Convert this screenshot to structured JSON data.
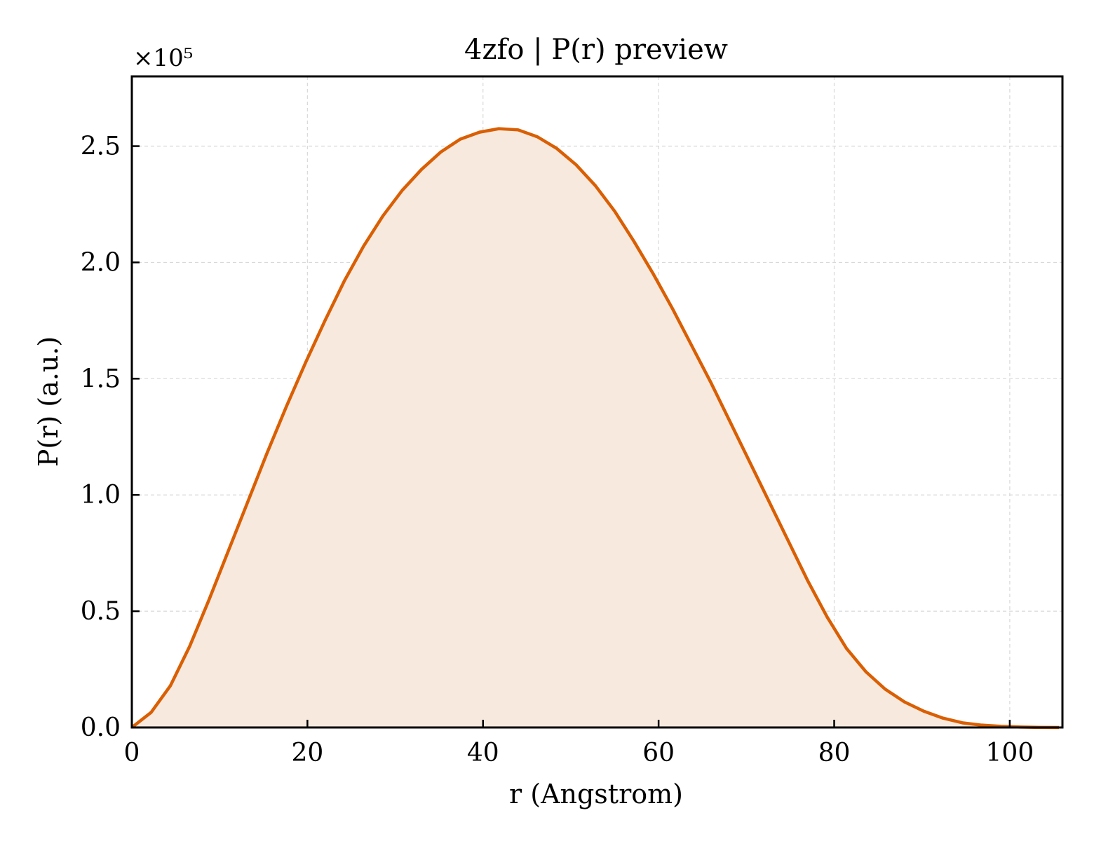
{
  "chart_data": {
    "type": "area",
    "title": "4zfo | P(r) preview",
    "xlabel": "r (Angstrom)",
    "ylabel": "P(r) (a.u.)",
    "y_multiplier_label": "×10⁵",
    "y_scale_factor": 100000,
    "xlim": [
      0,
      106
    ],
    "ylim": [
      0,
      280000
    ],
    "x_ticks": [
      0,
      20,
      40,
      60,
      80,
      100
    ],
    "x_tick_labels": [
      "0",
      "20",
      "40",
      "60",
      "80",
      "100"
    ],
    "y_ticks": [
      0,
      50000,
      100000,
      150000,
      200000,
      250000
    ],
    "y_tick_labels": [
      "0.0",
      "0.5",
      "1.0",
      "1.5",
      "2.0",
      "2.5"
    ],
    "grid": true,
    "colors": {
      "line": "#d95f02",
      "fill": "#f8e9df",
      "grid": "#d9d9d9"
    },
    "series": [
      {
        "x": [
          0,
          2.2,
          4.4,
          6.6,
          8.8,
          11.0,
          13.2,
          15.4,
          17.6,
          19.8,
          22.0,
          24.2,
          26.4,
          28.6,
          30.8,
          33.0,
          35.2,
          37.4,
          39.6,
          41.8,
          44.0,
          46.2,
          48.4,
          50.6,
          52.8,
          55.0,
          57.2,
          59.4,
          61.6,
          63.8,
          66.0,
          68.2,
          70.4,
          72.6,
          74.8,
          77.0,
          79.2,
          81.4,
          83.6,
          85.8,
          88.0,
          90.2,
          92.4,
          94.6,
          96.8,
          99.0,
          101.2,
          103.4,
          105.6
        ],
        "y": [
          0,
          6500,
          18000,
          35000,
          55000,
          76000,
          97000,
          118000,
          138000,
          157000,
          175000,
          192000,
          207000,
          220000,
          231000,
          240000,
          247500,
          253000,
          256000,
          257500,
          257000,
          254000,
          249000,
          242000,
          233000,
          222000,
          209000,
          195000,
          180000,
          164000,
          148000,
          131000,
          114000,
          97000,
          80000,
          63000,
          47500,
          34000,
          24000,
          16500,
          11000,
          7000,
          4000,
          2000,
          1000,
          500,
          200,
          50,
          0
        ]
      }
    ]
  }
}
